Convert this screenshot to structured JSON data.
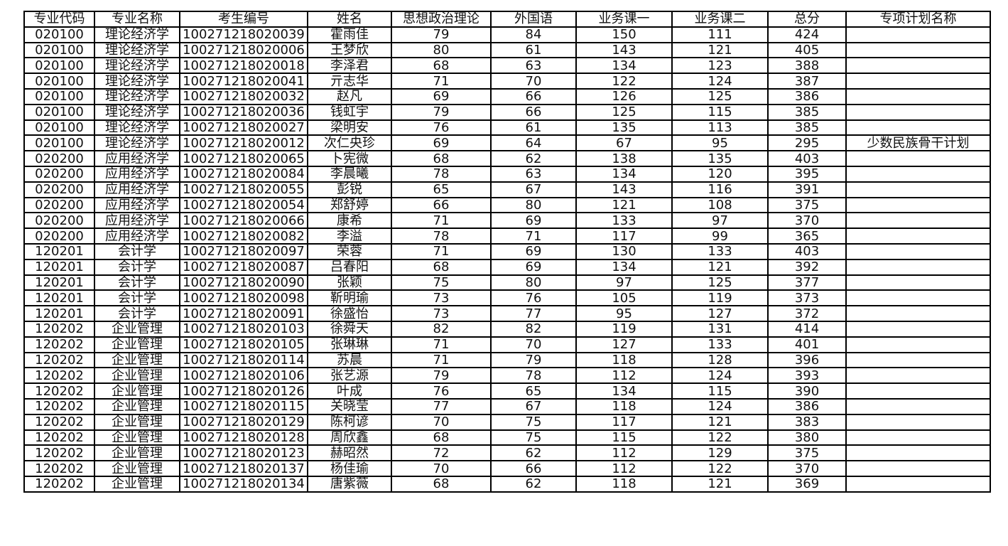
{
  "headers": [
    "专业代码",
    "专业名称",
    "考生编号",
    "姓名",
    "思想政治理论",
    "外国语",
    "业务课一",
    "业务课二",
    "总分",
    "专项计划名称"
  ],
  "rows": [
    [
      "020100",
      "理论经济学",
      "100271218020039",
      "霍雨佳",
      "79",
      "84",
      "150",
      "111",
      "424",
      ""
    ],
    [
      "020100",
      "理论经济学",
      "100271218020006",
      "王梦欣",
      "80",
      "61",
      "143",
      "121",
      "405",
      ""
    ],
    [
      "020100",
      "理论经济学",
      "100271218020018",
      "李泽君",
      "68",
      "63",
      "134",
      "123",
      "388",
      ""
    ],
    [
      "020100",
      "理论经济学",
      "100271218020041",
      "亓志华",
      "71",
      "70",
      "122",
      "124",
      "387",
      ""
    ],
    [
      "020100",
      "理论经济学",
      "100271218020032",
      "赵凡",
      "69",
      "66",
      "126",
      "125",
      "386",
      ""
    ],
    [
      "020100",
      "理论经济学",
      "100271218020036",
      "钱虹宇",
      "79",
      "66",
      "125",
      "115",
      "385",
      ""
    ],
    [
      "020100",
      "理论经济学",
      "100271218020027",
      "梁明安",
      "76",
      "61",
      "135",
      "113",
      "385",
      ""
    ],
    [
      "020100",
      "理论经济学",
      "100271218020012",
      "次仁央珍",
      "69",
      "64",
      "67",
      "95",
      "295",
      "少数民族骨干计划"
    ],
    [
      "020200",
      "应用经济学",
      "100271218020065",
      "卜宪微",
      "68",
      "62",
      "138",
      "135",
      "403",
      ""
    ],
    [
      "020200",
      "应用经济学",
      "100271218020084",
      "李晨曦",
      "78",
      "63",
      "134",
      "120",
      "395",
      ""
    ],
    [
      "020200",
      "应用经济学",
      "100271218020055",
      "彭锐",
      "65",
      "67",
      "143",
      "116",
      "391",
      ""
    ],
    [
      "020200",
      "应用经济学",
      "100271218020054",
      "郑舒婷",
      "66",
      "80",
      "121",
      "108",
      "375",
      ""
    ],
    [
      "020200",
      "应用经济学",
      "100271218020066",
      "康希",
      "71",
      "69",
      "133",
      "97",
      "370",
      ""
    ],
    [
      "020200",
      "应用经济学",
      "100271218020082",
      "李溢",
      "78",
      "71",
      "117",
      "99",
      "365",
      ""
    ],
    [
      "120201",
      "会计学",
      "100271218020097",
      "荣蓉",
      "71",
      "69",
      "130",
      "133",
      "403",
      ""
    ],
    [
      "120201",
      "会计学",
      "100271218020087",
      "吕春阳",
      "68",
      "69",
      "134",
      "121",
      "392",
      ""
    ],
    [
      "120201",
      "会计学",
      "100271218020090",
      "张颖",
      "75",
      "80",
      "97",
      "125",
      "377",
      ""
    ],
    [
      "120201",
      "会计学",
      "100271218020098",
      "靳明瑜",
      "73",
      "76",
      "105",
      "119",
      "373",
      ""
    ],
    [
      "120201",
      "会计学",
      "100271218020091",
      "徐盛怡",
      "73",
      "77",
      "95",
      "127",
      "372",
      ""
    ],
    [
      "120202",
      "企业管理",
      "100271218020103",
      "徐舜天",
      "82",
      "82",
      "119",
      "131",
      "414",
      ""
    ],
    [
      "120202",
      "企业管理",
      "100271218020105",
      "张琳琳",
      "71",
      "70",
      "127",
      "133",
      "401",
      ""
    ],
    [
      "120202",
      "企业管理",
      "100271218020114",
      "苏晨",
      "71",
      "79",
      "118",
      "128",
      "396",
      ""
    ],
    [
      "120202",
      "企业管理",
      "100271218020106",
      "张艺源",
      "79",
      "78",
      "112",
      "124",
      "393",
      ""
    ],
    [
      "120202",
      "企业管理",
      "100271218020126",
      "叶成",
      "76",
      "65",
      "134",
      "115",
      "390",
      ""
    ],
    [
      "120202",
      "企业管理",
      "100271218020115",
      "关晓莹",
      "77",
      "67",
      "118",
      "124",
      "386",
      ""
    ],
    [
      "120202",
      "企业管理",
      "100271218020129",
      "陈柯谚",
      "70",
      "75",
      "117",
      "121",
      "383",
      ""
    ],
    [
      "120202",
      "企业管理",
      "100271218020128",
      "周欣鑫",
      "68",
      "75",
      "115",
      "122",
      "380",
      ""
    ],
    [
      "120202",
      "企业管理",
      "100271218020123",
      "赫昭然",
      "72",
      "62",
      "112",
      "129",
      "375",
      ""
    ],
    [
      "120202",
      "企业管理",
      "100271218020137",
      "杨佳瑜",
      "70",
      "66",
      "112",
      "122",
      "370",
      ""
    ],
    [
      "120202",
      "企业管理",
      "100271218020134",
      "唐紫薇",
      "68",
      "62",
      "118",
      "121",
      "369",
      ""
    ]
  ]
}
